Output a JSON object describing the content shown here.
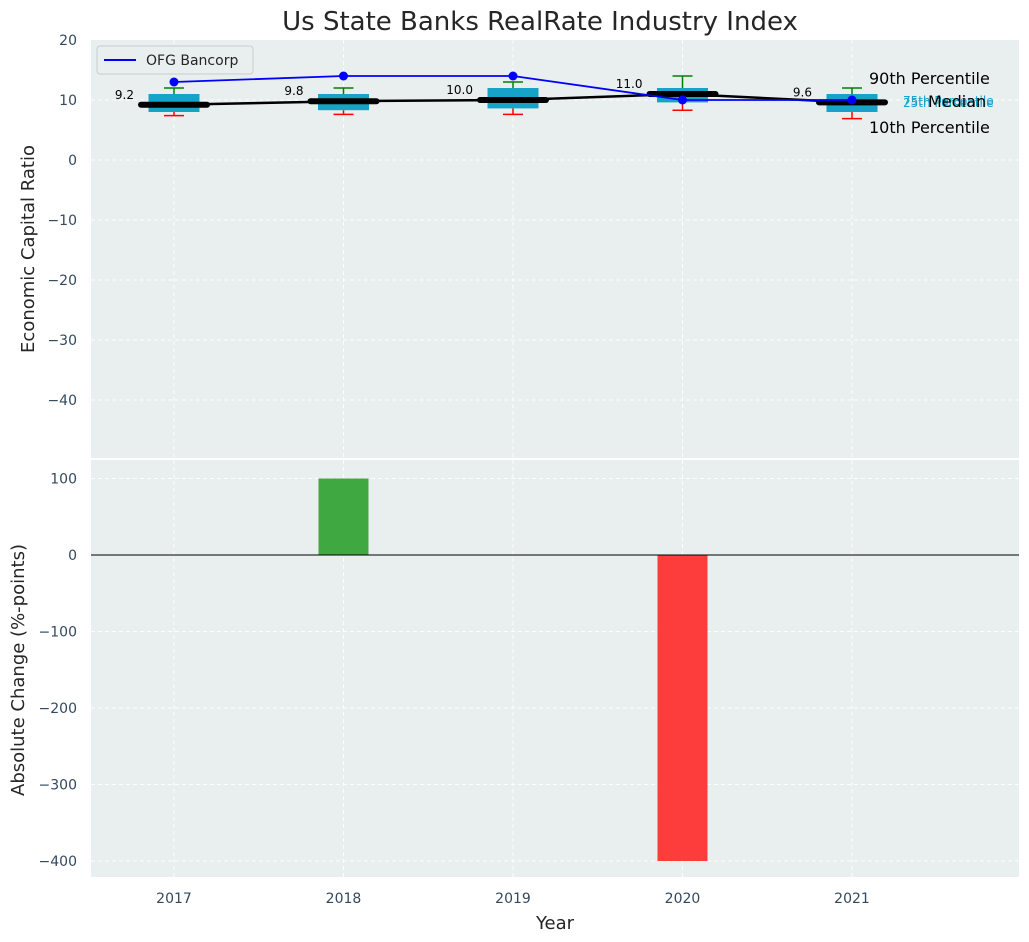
{
  "chart_data": [
    {
      "type": "box",
      "title": "Us State Banks RealRate Industry Index",
      "ylabel": "Economic Capital Ratio",
      "ylim": [
        -50,
        20
      ],
      "yticks": [
        20,
        10,
        0,
        -10,
        -20,
        -30,
        -40
      ],
      "categories": [
        "2017",
        "2018",
        "2019",
        "2020",
        "2021"
      ],
      "boxes": [
        {
          "p10": 7.4,
          "q1": 8.0,
          "median": 9.2,
          "q3": 11.0,
          "p90": 12.0
        },
        {
          "p10": 7.6,
          "q1": 8.3,
          "median": 9.8,
          "q3": 11.0,
          "p90": 12.0
        },
        {
          "p10": 7.6,
          "q1": 8.6,
          "median": 10.0,
          "q3": 12.0,
          "p90": 13.0
        },
        {
          "p10": 8.3,
          "q1": 9.6,
          "median": 11.0,
          "q3": 12.0,
          "p90": 14.0
        },
        {
          "p10": 6.9,
          "q1": 8.0,
          "median": 9.6,
          "q3": 11.0,
          "p90": 12.0
        }
      ],
      "median_labels": [
        "9.2",
        "9.8",
        "10.0",
        "11.0",
        "9.6"
      ],
      "median_line": [
        9.2,
        9.8,
        10.0,
        11.0,
        9.6
      ],
      "series": [
        {
          "name": "OFG Bancorp",
          "values": [
            13,
            14,
            14,
            10,
            10
          ],
          "color": "#0000ff"
        }
      ],
      "annotations": {
        "p90": "90th Percentile",
        "q3": "75th Percentile",
        "median": "Median",
        "q1": "25th Percentile",
        "p10": "10th Percentile"
      },
      "legend_position": "top-left",
      "grid": true,
      "colors": {
        "box": "#17a2c8",
        "p90_whisker": "#008000",
        "p10_whisker": "#ff0000",
        "median": "#000000"
      }
    },
    {
      "type": "bar",
      "xlabel": "Year",
      "ylabel": "Absolute Change (%-points)",
      "ylim": [
        -424,
        130
      ],
      "yticks": [
        100,
        0,
        -100,
        -200,
        -300,
        -400
      ],
      "categories": [
        "2017",
        "2018",
        "2019",
        "2020",
        "2021"
      ],
      "values": [
        0,
        100,
        0,
        -400,
        0
      ],
      "colors": {
        "positive": "#2ca02c",
        "negative": "#ff2828"
      },
      "grid": true
    }
  ]
}
